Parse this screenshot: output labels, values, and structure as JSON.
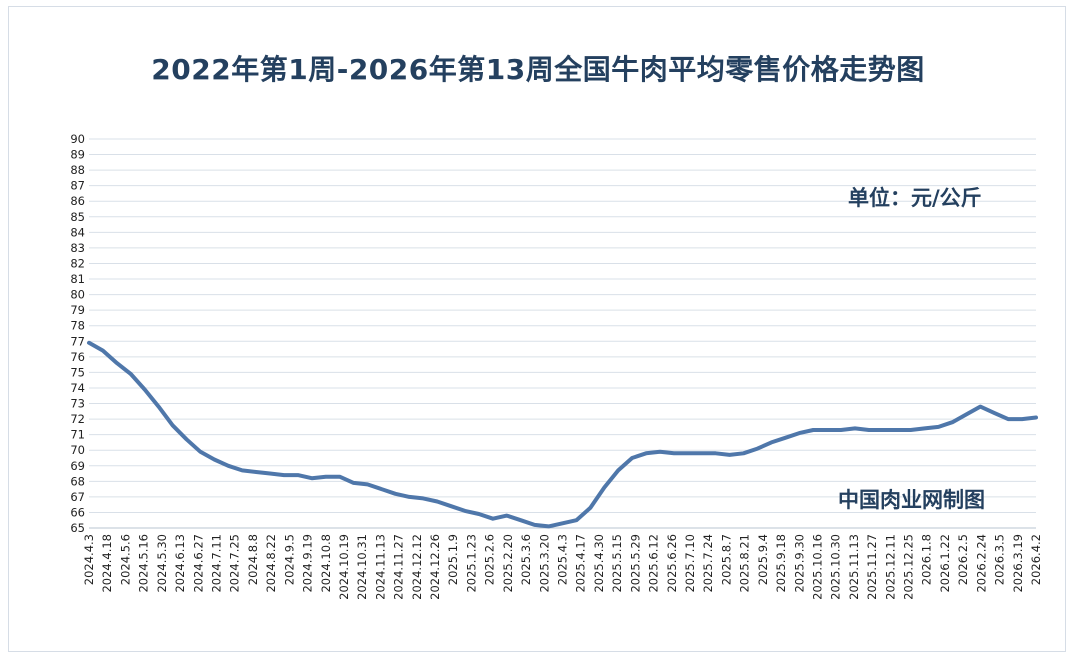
{
  "chart_data": {
    "type": "line",
    "title": "2022年第1周-2026年第13周全国牛肉平均零售价格走势图",
    "unit_label": "单位：元/公斤",
    "source_label": "中国肉业网制图",
    "ylim": [
      65,
      90
    ],
    "yticks": [
      65,
      66,
      67,
      68,
      69,
      70,
      71,
      72,
      73,
      74,
      75,
      76,
      77,
      78,
      79,
      80,
      81,
      82,
      83,
      84,
      85,
      86,
      87,
      88,
      89,
      90
    ],
    "grid": true,
    "line_color": "#4f77aa",
    "xticks": [
      "2024.4.3",
      "2024.4.18",
      "2024.5.6",
      "2024.5.16",
      "2024.5.30",
      "2024.6.13",
      "2024.6.27",
      "2024.7.11",
      "2024.7.25",
      "2024.8.8",
      "2024.8.22",
      "2024.9.5",
      "2024.9.19",
      "2024.10.8",
      "2024.10.19",
      "2024.10.31",
      "2024.11.13",
      "2024.11.27",
      "2024.12.12",
      "2024.12.26",
      "2025.1.9",
      "2025.1.23",
      "2025.2.6",
      "2025.2.20",
      "2025.3.6",
      "2025.3.20",
      "2025.4.3",
      "2025.4.17",
      "2025.4.30",
      "2025.5.15",
      "2025.5.29",
      "2025.6.12",
      "2025.6.26",
      "2025.7.10",
      "2025.7.24",
      "2025.8.7",
      "2025.8.21",
      "2025.9.4",
      "2025.9.18",
      "2025.9.30",
      "2025.10.16",
      "2025.10.30",
      "2025.11.13",
      "2025.11.27",
      "2025.12.11",
      "2025.12.25",
      "2026.1.8",
      "2026.1.22",
      "2026.2.5",
      "2026.2.24",
      "2026.3.5",
      "2026.3.19",
      "2026.4.2"
    ],
    "series": [
      {
        "values": [
          76.9,
          76.4,
          75.6,
          74.9,
          73.9,
          72.8,
          71.6,
          70.7,
          69.9,
          69.4,
          69.0,
          68.7,
          68.6,
          68.5,
          68.4,
          68.4,
          68.2,
          68.3,
          68.3,
          67.9,
          67.8,
          67.5,
          67.2,
          67.0,
          66.9,
          66.7,
          66.4,
          66.1,
          65.9,
          65.6,
          65.8,
          65.5,
          65.2,
          65.1,
          65.3,
          65.5,
          66.3,
          67.6,
          68.7,
          69.5,
          69.8,
          69.9,
          69.8,
          69.8,
          69.8,
          69.8,
          69.7,
          69.8,
          70.1,
          70.5,
          70.8,
          71.1,
          71.3,
          71.3,
          71.3,
          71.4,
          71.3,
          71.3,
          71.3,
          71.3,
          71.4,
          71.5,
          71.8,
          72.3,
          72.8,
          72.4,
          72.0,
          72.0,
          72.1
        ]
      }
    ]
  }
}
